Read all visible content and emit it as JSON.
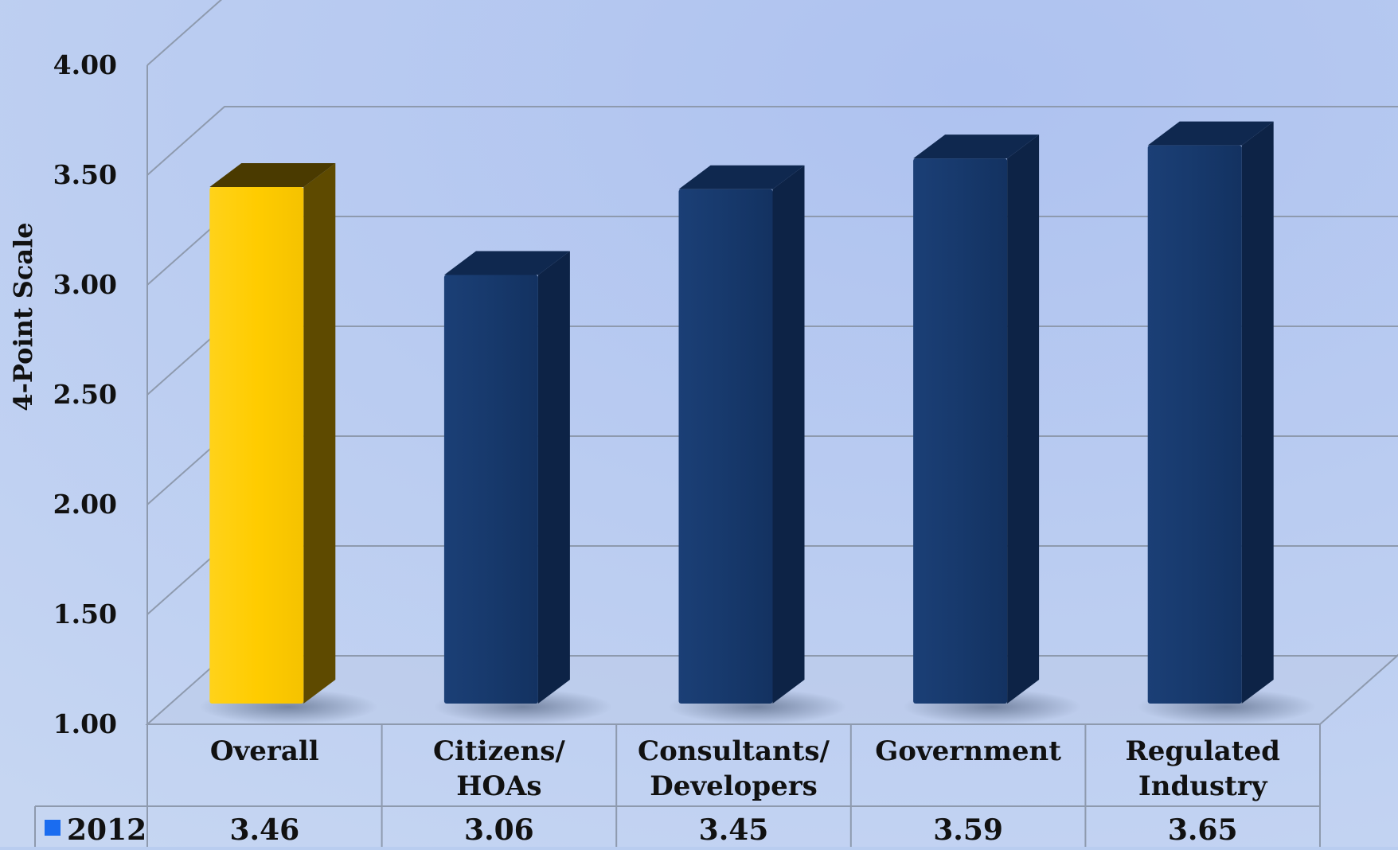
{
  "chart_data": {
    "type": "bar",
    "categories": [
      "Overall",
      "Citizens/\nHOAs",
      "Consultants/\nDevelopers",
      "Government",
      "Regulated\nIndustry"
    ],
    "series": [
      {
        "name": "2012",
        "values": [
          3.46,
          3.06,
          3.45,
          3.59,
          3.65
        ]
      }
    ],
    "value_labels": [
      "3.46",
      "3.06",
      "3.45",
      "3.59",
      "3.65"
    ],
    "ylabel": "4-Point Scale",
    "yticks": [
      "1.00",
      "1.50",
      "2.00",
      "2.50",
      "3.00",
      "3.50",
      "4.00"
    ],
    "ylim": [
      1.0,
      4.0
    ],
    "grid": true,
    "highlight_category": "Overall",
    "legend_position": "data-table"
  },
  "colors": {
    "highlight_bar": "#FFCC00",
    "bar": "#16386b",
    "legend_marker": "#1a6cf0",
    "gridline": "#8e9aae",
    "background": "#b9cdf0"
  }
}
